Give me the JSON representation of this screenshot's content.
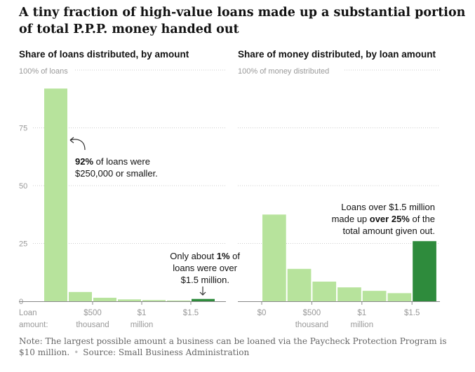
{
  "headline": "A tiny fraction of high-value loans made up a substantial portion of total P.P.P. money handed out",
  "note": "Note: The largest possible amount a business can be loaned via the Paycheck Protection Program is $10 million.",
  "source": "Source: Small Business Administration",
  "colors": {
    "light_bar": "#b7e39c",
    "dark_bar": "#2e8b3c",
    "grid": "#cccccc",
    "axis_text": "#999999",
    "annotation": "#121212"
  },
  "chart_data": [
    {
      "type": "bar",
      "title": "Share of loans distributed, by amount",
      "top_label": "100% of loans",
      "ylim": [
        0,
        100
      ],
      "yticks": [
        0,
        25,
        50,
        75
      ],
      "xlabel": "Loan amount:",
      "xticks": [
        {
          "label": "$500",
          "sub": "thousand",
          "at": 500
        },
        {
          "label": "$1",
          "sub": "million",
          "at": 1000
        },
        {
          "label": "$1.5",
          "sub": "",
          "at": 1500
        }
      ],
      "bins": [
        {
          "from": 0,
          "to": 250,
          "value": 92,
          "highlight": false
        },
        {
          "from": 250,
          "to": 500,
          "value": 4,
          "highlight": false
        },
        {
          "from": 500,
          "to": 750,
          "value": 1.5,
          "highlight": false
        },
        {
          "from": 750,
          "to": 1000,
          "value": 0.8,
          "highlight": false
        },
        {
          "from": 1000,
          "to": 1250,
          "value": 0.5,
          "highlight": false
        },
        {
          "from": 1250,
          "to": 1500,
          "value": 0.3,
          "highlight": false
        },
        {
          "from": 1500,
          "to": 1750,
          "value": 1,
          "highlight": true
        }
      ],
      "annotations": [
        {
          "lines": [
            [
              "92%",
              " of loans were"
            ],
            [
              "",
              "$250,000 or smaller."
            ]
          ]
        },
        {
          "lines": [
            [
              "",
              "Only about "
            ],
            [
              "1%",
              " of"
            ],
            [
              "",
              "loans were over"
            ],
            [
              "",
              "$1.5 million."
            ]
          ]
        }
      ]
    },
    {
      "type": "bar",
      "title": "Share of money distributed, by loan amount",
      "top_label": "100% of money distributed",
      "ylim": [
        0,
        100
      ],
      "xlabel": "",
      "xticks": [
        {
          "label": "$0",
          "sub": "",
          "at": 0
        },
        {
          "label": "$500",
          "sub": "thousand",
          "at": 500
        },
        {
          "label": "$1",
          "sub": "million",
          "at": 1000
        },
        {
          "label": "$1.5",
          "sub": "",
          "at": 1500
        }
      ],
      "bins": [
        {
          "from": 0,
          "to": 250,
          "value": 37.5,
          "highlight": false
        },
        {
          "from": 250,
          "to": 500,
          "value": 14,
          "highlight": false
        },
        {
          "from": 500,
          "to": 750,
          "value": 8.5,
          "highlight": false
        },
        {
          "from": 750,
          "to": 1000,
          "value": 6,
          "highlight": false
        },
        {
          "from": 1000,
          "to": 1250,
          "value": 4.5,
          "highlight": false
        },
        {
          "from": 1250,
          "to": 1500,
          "value": 3.5,
          "highlight": false
        },
        {
          "from": 1500,
          "to": 1750,
          "value": 26,
          "highlight": true
        }
      ],
      "annotations": [
        {
          "lines": [
            [
              "",
              "Loans over $1.5 million"
            ],
            [
              "",
              "made up "
            ],
            [
              "over 25%",
              " of the"
            ],
            [
              "",
              "total amount given out."
            ]
          ]
        }
      ]
    }
  ]
}
